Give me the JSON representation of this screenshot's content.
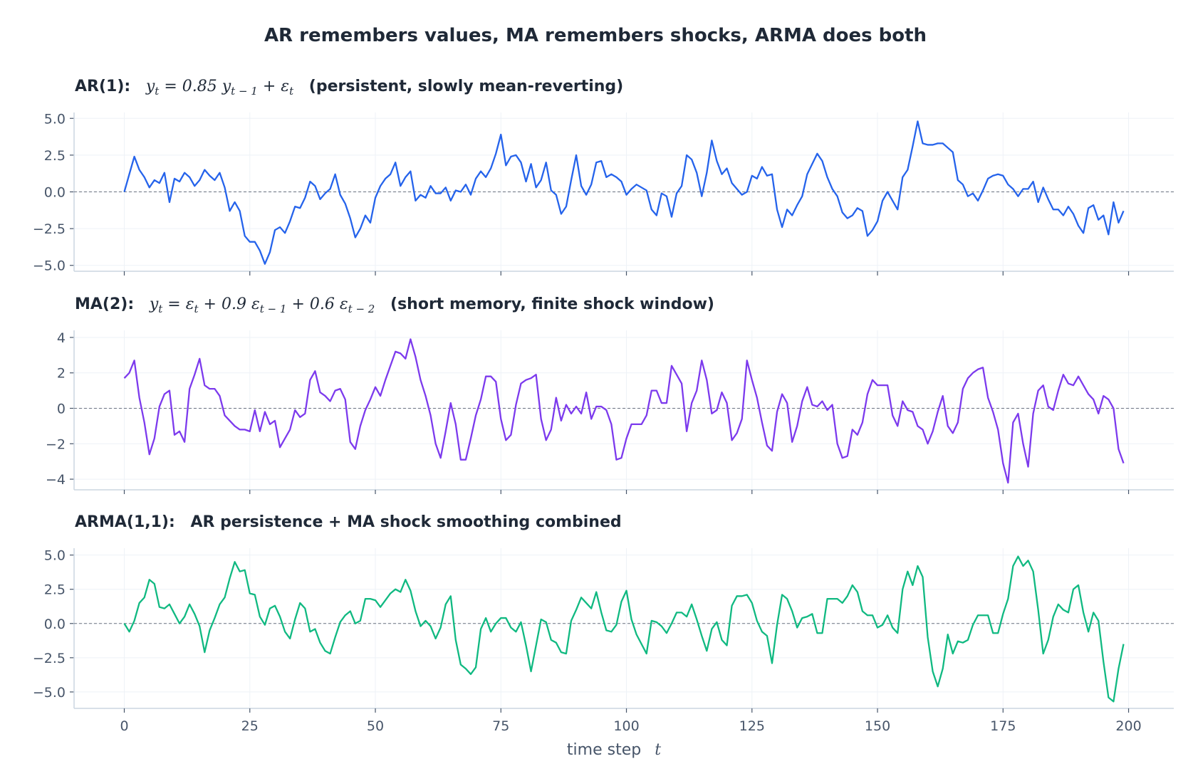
{
  "chart_data": {
    "type": "line",
    "title": "AR remembers values, MA remembers shocks, ARMA does both",
    "xlabel_text": "time step",
    "xlabel_symbol": "t",
    "x_ticks": [
      0,
      25,
      50,
      75,
      100,
      125,
      150,
      175,
      200
    ],
    "xlim": [
      -10,
      209
    ],
    "x_start": 0,
    "x_step": 1,
    "colors": {
      "grid": "#eef2f7",
      "spine": "#cbd5e1",
      "zero": "#6b7280",
      "text": "#1f2937",
      "tick": "#475569"
    },
    "panels": [
      {
        "label": "AR(1):",
        "equation": "y_t = 0.85 y_{t−1} + ε_t",
        "equation_parts": {
          "a": "y",
          "a_sub": "t",
          "b": " = 0.85 ",
          "c": "y",
          "c_sub": "t − 1",
          "d": " + ε",
          "d_sub": "t"
        },
        "note": "(persistent, slowly mean-reverting)",
        "color": "#2563eb",
        "ylim": [
          -5.4,
          5.4
        ],
        "y_ticks": [
          5.0,
          2.5,
          0.0,
          -2.5,
          -5.0
        ],
        "y_tick_labels": [
          "5.0",
          "2.5",
          "0.0",
          "−2.5",
          "−5.0"
        ],
        "values": [
          0.0,
          1.2,
          2.4,
          1.5,
          1.0,
          0.3,
          0.8,
          0.6,
          1.3,
          -0.7,
          0.9,
          0.7,
          1.3,
          1.0,
          0.4,
          0.8,
          1.5,
          1.1,
          0.8,
          1.3,
          0.3,
          -1.3,
          -0.7,
          -1.3,
          -3.0,
          -3.4,
          -3.4,
          -4.0,
          -4.9,
          -4.1,
          -2.6,
          -2.4,
          -2.8,
          -2.0,
          -1.0,
          -1.1,
          -0.4,
          0.7,
          0.4,
          -0.5,
          -0.1,
          0.2,
          1.2,
          -0.2,
          -0.8,
          -1.8,
          -3.1,
          -2.5,
          -1.6,
          -2.1,
          -0.4,
          0.4,
          0.9,
          1.2,
          2.0,
          0.4,
          1.0,
          1.4,
          -0.6,
          -0.2,
          -0.4,
          0.4,
          -0.1,
          -0.1,
          0.3,
          -0.6,
          0.1,
          0.0,
          0.5,
          -0.2,
          0.9,
          1.4,
          1.0,
          1.6,
          2.6,
          3.9,
          1.8,
          2.4,
          2.5,
          2.0,
          0.7,
          1.9,
          0.3,
          0.8,
          2.0,
          0.1,
          -0.2,
          -1.5,
          -1.0,
          0.8,
          2.5,
          0.4,
          -0.2,
          0.5,
          2.0,
          2.1,
          1.0,
          1.2,
          1.0,
          0.7,
          -0.2,
          0.2,
          0.5,
          0.3,
          0.1,
          -1.2,
          -1.6,
          -0.1,
          -0.3,
          -1.7,
          -0.1,
          0.4,
          2.5,
          2.2,
          1.3,
          -0.3,
          1.3,
          3.5,
          2.1,
          1.2,
          1.6,
          0.6,
          0.2,
          -0.2,
          0.0,
          1.1,
          0.9,
          1.7,
          1.1,
          1.2,
          -1.2,
          -2.4,
          -1.2,
          -1.6,
          -0.9,
          -0.3,
          1.2,
          1.9,
          2.6,
          2.1,
          1.0,
          0.2,
          -0.3,
          -1.4,
          -1.8,
          -1.6,
          -1.1,
          -1.3,
          -3.0,
          -2.6,
          -2.0,
          -0.6,
          0.0,
          -0.6,
          -1.2,
          1.0,
          1.5,
          3.1,
          4.8,
          3.3,
          3.2,
          3.2,
          3.3,
          3.3,
          3.0,
          2.7,
          0.8,
          0.5,
          -0.3,
          -0.1,
          -0.6,
          0.1,
          0.9,
          1.1,
          1.2,
          1.1,
          0.5,
          0.2,
          -0.3,
          0.2,
          0.2,
          0.7,
          -0.7,
          0.3,
          -0.5,
          -1.2,
          -1.2,
          -1.6,
          -1.0,
          -1.5,
          -2.3,
          -2.8,
          -1.1,
          -0.9,
          -1.9,
          -1.6,
          -2.9,
          -0.7,
          -2.1,
          -1.3
        ]
      },
      {
        "label": "MA(2):",
        "equation": "y_t = ε_t + 0.9 ε_{t−1} + 0.6 ε_{t−2}",
        "equation_parts": {
          "a": "y",
          "a_sub": "t",
          "b": " = ε",
          "b_sub": "t",
          "c": " + 0.9 ε",
          "c_sub": "t − 1",
          "d": " + 0.6 ε",
          "d_sub": "t − 2"
        },
        "note": "(short memory, finite shock window)",
        "color": "#7c3aed",
        "ylim": [
          -4.6,
          4.4
        ],
        "y_ticks": [
          4,
          2,
          0,
          -2,
          -4
        ],
        "y_tick_labels": [
          "4",
          "2",
          "0",
          "−2",
          "−4"
        ],
        "values": [
          1.7,
          2.0,
          2.7,
          0.6,
          -0.8,
          -2.6,
          -1.7,
          0.1,
          0.8,
          1.0,
          -1.5,
          -1.3,
          -1.9,
          1.1,
          1.9,
          2.8,
          1.3,
          1.1,
          1.1,
          0.7,
          -0.4,
          -0.7,
          -1.0,
          -1.2,
          -1.2,
          -1.3,
          -0.1,
          -1.3,
          -0.2,
          -0.9,
          -0.7,
          -2.2,
          -1.7,
          -1.2,
          -0.1,
          -0.5,
          -0.3,
          1.6,
          2.1,
          0.9,
          0.7,
          0.4,
          1.0,
          1.1,
          0.5,
          -1.9,
          -2.3,
          -1.0,
          -0.1,
          0.5,
          1.2,
          0.7,
          1.6,
          2.4,
          3.2,
          3.1,
          2.8,
          3.9,
          2.9,
          1.6,
          0.7,
          -0.4,
          -2.0,
          -2.8,
          -1.3,
          0.3,
          -0.9,
          -2.9,
          -2.9,
          -1.7,
          -0.4,
          0.5,
          1.8,
          1.8,
          1.5,
          -0.6,
          -1.8,
          -1.5,
          0.2,
          1.4,
          1.6,
          1.7,
          1.9,
          -0.6,
          -1.8,
          -1.2,
          0.6,
          -0.7,
          0.2,
          -0.3,
          0.1,
          -0.3,
          0.9,
          -0.6,
          0.1,
          0.1,
          -0.1,
          -0.9,
          -2.9,
          -2.8,
          -1.7,
          -0.9,
          -0.9,
          -0.9,
          -0.4,
          1.0,
          1.0,
          0.3,
          0.3,
          2.4,
          1.9,
          1.4,
          -1.3,
          0.3,
          1.0,
          2.7,
          1.6,
          -0.3,
          -0.1,
          0.9,
          0.3,
          -1.8,
          -1.4,
          -0.6,
          2.7,
          1.6,
          0.6,
          -0.8,
          -2.1,
          -2.4,
          -0.2,
          0.8,
          0.3,
          -1.9,
          -1.0,
          0.4,
          1.2,
          0.2,
          0.1,
          0.4,
          -0.1,
          0.2,
          -2.0,
          -2.8,
          -2.7,
          -1.2,
          -1.5,
          -0.8,
          0.8,
          1.6,
          1.3,
          1.3,
          1.3,
          -0.4,
          -1.0,
          0.4,
          -0.1,
          -0.2,
          -1.0,
          -1.2,
          -2.0,
          -1.3,
          -0.2,
          0.7,
          -1.0,
          -1.4,
          -0.8,
          1.1,
          1.7,
          2.0,
          2.2,
          2.3,
          0.6,
          -0.2,
          -1.2,
          -3.1,
          -4.2,
          -0.8,
          -0.3,
          -2.0,
          -3.3,
          -0.3,
          1.0,
          1.3,
          0.1,
          -0.1,
          1.0,
          1.9,
          1.4,
          1.3,
          1.8,
          1.3,
          0.8,
          0.5,
          -0.3,
          0.7,
          0.5,
          0.0,
          -2.3,
          -3.1
        ]
      },
      {
        "label": "ARMA(1,1):",
        "equation": "",
        "note": "AR persistence + MA shock smoothing combined",
        "color": "#10b981",
        "ylim": [
          -6.2,
          5.5
        ],
        "y_ticks": [
          5.0,
          2.5,
          0.0,
          -2.5,
          -5.0
        ],
        "y_tick_labels": [
          "5.0",
          "2.5",
          "0.0",
          "−2.5",
          "−5.0"
        ],
        "values": [
          0.0,
          -0.6,
          0.2,
          1.5,
          1.9,
          3.2,
          2.9,
          1.2,
          1.1,
          1.4,
          0.7,
          0.0,
          0.5,
          1.4,
          0.7,
          -0.2,
          -2.1,
          -0.5,
          0.4,
          1.4,
          1.9,
          3.3,
          4.5,
          3.8,
          3.9,
          2.2,
          2.1,
          0.5,
          -0.1,
          1.1,
          1.3,
          0.5,
          -0.6,
          -1.1,
          0.3,
          1.5,
          1.1,
          -0.6,
          -0.4,
          -1.4,
          -2.0,
          -2.2,
          -1.0,
          0.1,
          0.6,
          0.9,
          0.0,
          0.2,
          1.8,
          1.8,
          1.7,
          1.2,
          1.7,
          2.2,
          2.5,
          2.3,
          3.2,
          2.4,
          0.9,
          -0.2,
          0.2,
          -0.2,
          -1.1,
          -0.3,
          1.4,
          2.0,
          -1.2,
          -3.0,
          -3.3,
          -3.7,
          -3.2,
          -0.4,
          0.4,
          -0.6,
          0.0,
          0.4,
          0.4,
          -0.3,
          -0.6,
          0.1,
          -1.6,
          -3.5,
          -1.6,
          0.3,
          0.1,
          -1.2,
          -1.4,
          -2.1,
          -2.2,
          0.2,
          1.0,
          1.9,
          1.5,
          1.1,
          2.3,
          0.8,
          -0.5,
          -0.6,
          -0.1,
          1.6,
          2.4,
          0.3,
          -0.8,
          -1.5,
          -2.2,
          0.2,
          0.1,
          -0.2,
          -0.7,
          0.0,
          0.8,
          0.8,
          0.5,
          1.4,
          0.3,
          -0.9,
          -2.0,
          -0.4,
          0.1,
          -1.2,
          -1.6,
          1.3,
          2.0,
          2.0,
          2.1,
          1.5,
          0.2,
          -0.6,
          -0.9,
          -2.9,
          -0.1,
          2.1,
          1.8,
          0.9,
          -0.3,
          0.4,
          0.5,
          0.7,
          -0.7,
          -0.7,
          1.8,
          1.8,
          1.8,
          1.5,
          2.0,
          2.8,
          2.3,
          0.9,
          0.6,
          0.6,
          -0.3,
          -0.1,
          0.6,
          -0.3,
          -0.7,
          2.5,
          3.8,
          2.8,
          4.2,
          3.4,
          -1.0,
          -3.5,
          -4.6,
          -3.3,
          -0.8,
          -2.2,
          -1.3,
          -1.4,
          -1.2,
          -0.1,
          0.6,
          0.6,
          0.6,
          -0.7,
          -0.7,
          0.7,
          1.8,
          4.2,
          4.9,
          4.2,
          4.6,
          3.8,
          1.0,
          -2.2,
          -1.2,
          0.5,
          1.4,
          1.0,
          0.8,
          2.5,
          2.8,
          0.8,
          -0.6,
          0.8,
          0.2,
          -2.8,
          -5.4,
          -5.7,
          -3.3,
          -1.5
        ]
      }
    ]
  }
}
